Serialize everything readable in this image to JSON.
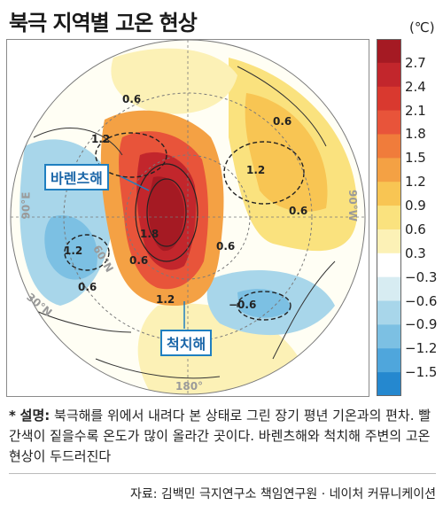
{
  "title": "북극 지역별 고온 현상",
  "colorbar": {
    "unit": "(℃)",
    "ticks": [
      "2.7",
      "2.4",
      "2.1",
      "1.8",
      "1.5",
      "1.2",
      "0.9",
      "0.6",
      "0.3",
      "−0.3",
      "−0.6",
      "−0.9",
      "−1.2",
      "−1.5"
    ],
    "colors": [
      "#a51a23",
      "#c2262c",
      "#d9392f",
      "#e8543a",
      "#f07c3b",
      "#f4a144",
      "#f8c553",
      "#fae27e",
      "#fcf1b6",
      "#ffffff",
      "#d7ecf2",
      "#a8d6ea",
      "#7cc0e3",
      "#4fa6dc",
      "#2588cf"
    ]
  },
  "map": {
    "labels": {
      "barents": "바렌츠해",
      "chukchi": "척치해",
      "lon_90e": "90°E",
      "lon_90w": "90°W",
      "lon_180": "180°",
      "lat_30n": "30°N",
      "lat_60n": "60°N"
    },
    "contour_values": [
      "0.6",
      "1.2",
      "0.6",
      "0.6",
      "1.2",
      "1.8",
      "0.6",
      "1.2",
      "−0.6",
      "0.6",
      "1.2",
      "0.6"
    ]
  },
  "caption": {
    "star": "*",
    "lead": "설명:",
    "text": " 북극해를 위에서 내려다 본 상태로 그린 장기 평년 기온과의 편차. 빨간색이 짙을수록 온도가 많이 올라간 곳이다. 바렌츠해와 척치해 주변의 고온 현상이 두드러진다"
  },
  "source": "자료: 김백민 극지연구소 책임연구원 · 네이처 커뮤니케이션"
}
